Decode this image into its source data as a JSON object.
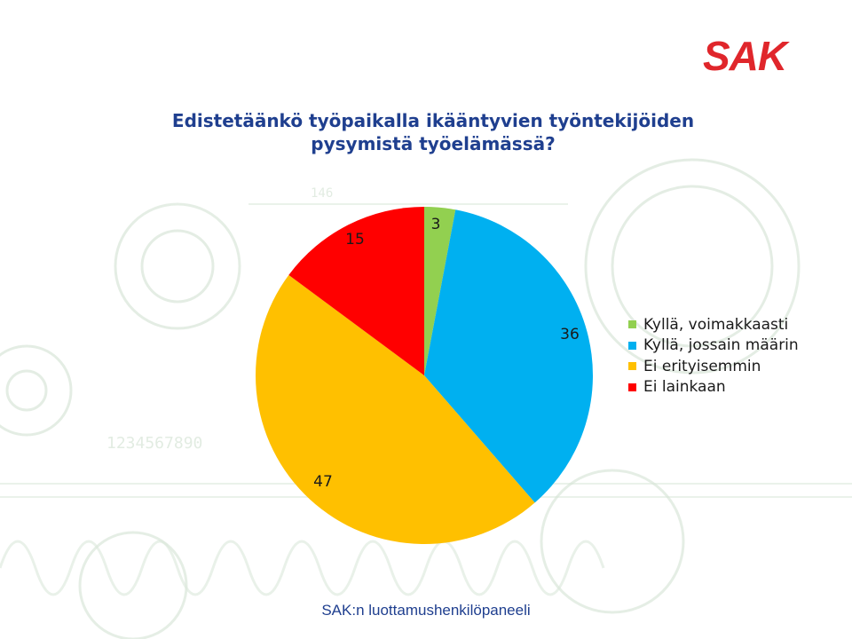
{
  "logo": {
    "text": "SAK",
    "color": "#e0262b"
  },
  "slide": {
    "title_line1": "Edistetäänkö työpaikalla ikääntyvien työntekijöiden",
    "title_line2": "pysymistä työelämässä?",
    "footer": "SAK:n luottamushenkilöpaneeli"
  },
  "chart_data": {
    "type": "pie",
    "title": "",
    "categories": [
      "Kyllä, voimakkaasti",
      "Kyllä, jossain määrin",
      "Ei erityisemmin",
      "Ei lainkaan"
    ],
    "values": [
      3,
      36,
      47,
      15
    ],
    "data_labels": [
      "3",
      "36",
      "47",
      "15"
    ],
    "colors": [
      "#92d050",
      "#00b0f0",
      "#ffc000",
      "#ff0000"
    ],
    "start": "top, clockwise",
    "legend_position": "right"
  }
}
